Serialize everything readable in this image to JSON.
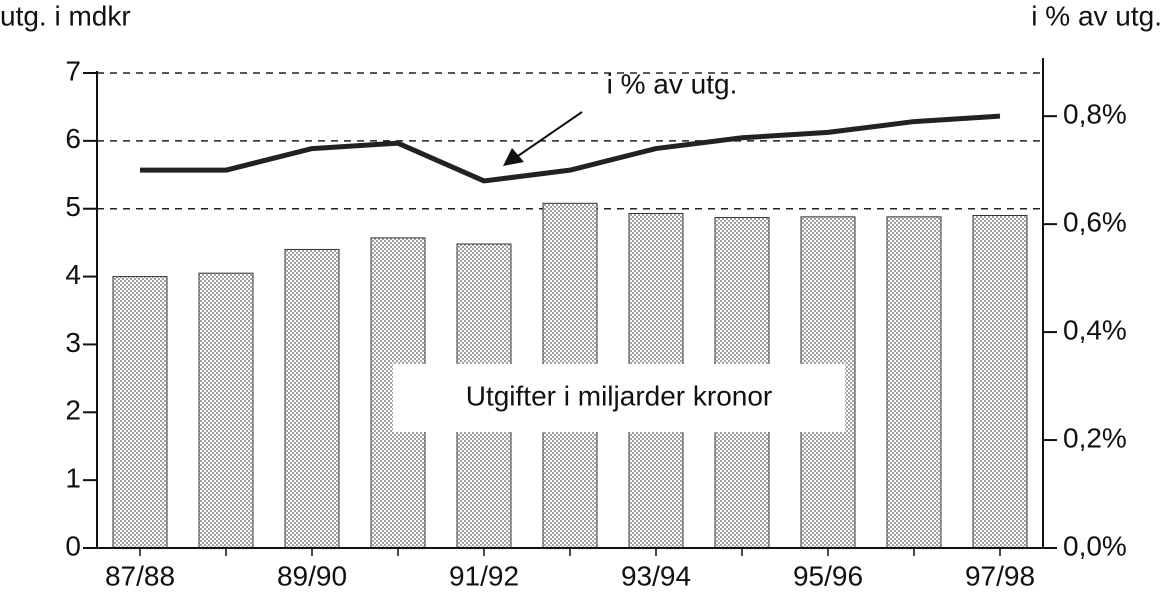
{
  "chart_data": {
    "type": "bar-line",
    "y_label": "utg. i mdkr",
    "y2_label": "i % av utg.",
    "categories": [
      "87/88",
      null,
      "89/90",
      null,
      "91/92",
      null,
      "93/94",
      null,
      "95/96",
      null,
      "97/98"
    ],
    "series": [
      {
        "name": "Utgifter i miljarder kronor",
        "type": "bar",
        "color": "#9a9a9a",
        "values": [
          4.0,
          4.05,
          4.4,
          4.57,
          4.48,
          5.08,
          4.93,
          4.87,
          4.88,
          4.88,
          4.9
        ]
      },
      {
        "name": "i % av utg.",
        "type": "line",
        "axis": "y2",
        "color": "#222222",
        "values": [
          0.7,
          0.7,
          0.74,
          0.75,
          0.68,
          0.7,
          0.74,
          0.76,
          0.77,
          0.79,
          0.8
        ]
      }
    ],
    "ylim": [
      0,
      7
    ],
    "yticks": [
      0,
      1,
      2,
      3,
      4,
      5,
      6,
      7
    ],
    "y2lim": [
      0,
      0.88
    ],
    "y2ticks": [
      {
        "value": 0,
        "label": "0,0%"
      },
      {
        "value": 0.2,
        "label": "0,2%"
      },
      {
        "value": 0.4,
        "label": "0,4%"
      },
      {
        "value": 0.6,
        "label": "0,6%"
      },
      {
        "value": 0.8,
        "label": "0,8%"
      }
    ],
    "grid_y": [
      5,
      6,
      7
    ]
  }
}
